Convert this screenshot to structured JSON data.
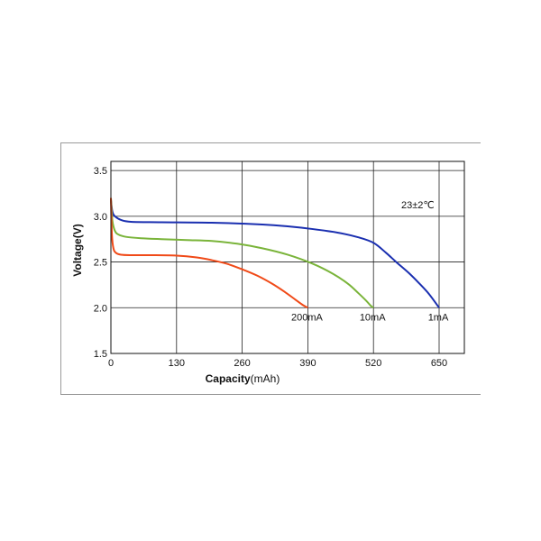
{
  "chart_data": {
    "type": "line",
    "title": "",
    "annotation": "23±2℃",
    "xlabel_bold": "Capacity",
    "xlabel_unit": "(mAh)",
    "ylabel": "Voltage(V)",
    "xlim": [
      0,
      700
    ],
    "ylim": [
      1.5,
      3.6
    ],
    "xticks": [
      0,
      130,
      260,
      390,
      520,
      650
    ],
    "xtick_labels": [
      "0",
      "130",
      "260",
      "390",
      "520",
      "650"
    ],
    "yticks": [
      1.5,
      2.0,
      2.5,
      3.0,
      3.5
    ],
    "ytick_labels": [
      "1.5",
      "2.0",
      "2.5",
      "3.0",
      "3.5"
    ],
    "grid": true,
    "series": [
      {
        "name": "1mA",
        "color": "#1a2fb0",
        "x": [
          0,
          3,
          8,
          20,
          40,
          100,
          200,
          300,
          350,
          400,
          450,
          490,
          520,
          545,
          565,
          590,
          610,
          630,
          650
        ],
        "y": [
          3.18,
          3.05,
          3.0,
          2.96,
          2.94,
          2.935,
          2.93,
          2.91,
          2.89,
          2.86,
          2.82,
          2.77,
          2.71,
          2.6,
          2.5,
          2.38,
          2.27,
          2.15,
          2.0
        ]
      },
      {
        "name": "10mA",
        "color": "#7ab43a",
        "x": [
          0,
          3,
          8,
          15,
          30,
          60,
          100,
          150,
          200,
          250,
          300,
          350,
          400,
          440,
          470,
          490,
          505,
          515,
          520
        ],
        "y": [
          3.2,
          2.95,
          2.84,
          2.8,
          2.775,
          2.76,
          2.75,
          2.74,
          2.73,
          2.7,
          2.65,
          2.58,
          2.48,
          2.37,
          2.26,
          2.16,
          2.08,
          2.02,
          2.0
        ]
      },
      {
        "name": "200mA",
        "color": "#f04a18",
        "x": [
          0,
          2,
          5,
          10,
          20,
          40,
          80,
          130,
          170,
          200,
          230,
          260,
          290,
          320,
          345,
          365,
          380,
          390
        ],
        "y": [
          3.2,
          2.8,
          2.65,
          2.6,
          2.58,
          2.575,
          2.575,
          2.57,
          2.55,
          2.52,
          2.48,
          2.42,
          2.35,
          2.26,
          2.17,
          2.09,
          2.03,
          2.0
        ]
      }
    ]
  }
}
